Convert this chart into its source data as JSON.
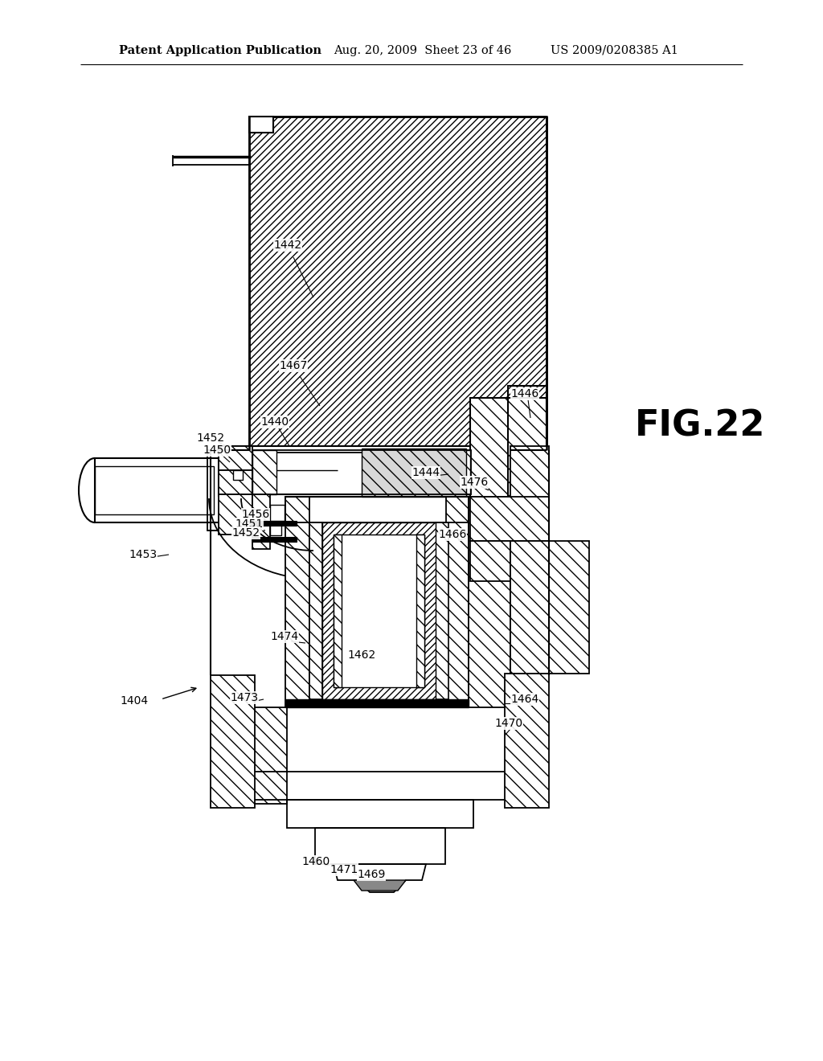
{
  "header_left": "Patent Application Publication",
  "header_center": "Aug. 20, 2009  Sheet 23 of 46",
  "header_right": "US 2009/0208385 A1",
  "fig_label": "FIG.22",
  "bg": "#ffffff"
}
